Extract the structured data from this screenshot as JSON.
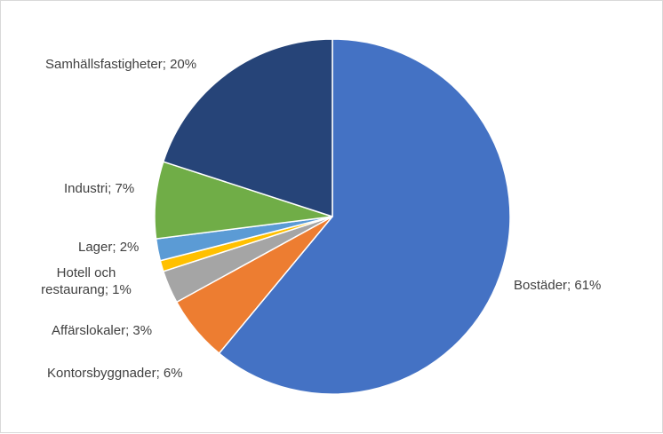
{
  "chart_data": {
    "type": "pie",
    "title": "",
    "slices": [
      {
        "label": "Bostäder; 61%",
        "category": "Bostäder",
        "value": 61,
        "color": "#4472c4"
      },
      {
        "label": "Kontorsbyggnader; 6%",
        "category": "Kontorsbyggnader",
        "value": 6,
        "color": "#ed7d31"
      },
      {
        "label": "Affärslokaler; 3%",
        "category": "Affärslokaler",
        "value": 3,
        "color": "#a5a5a5"
      },
      {
        "label": "Hotell och restaurang; 1%",
        "category": "Hotell och restaurang",
        "value": 1,
        "color": "#ffc000"
      },
      {
        "label": "Lager; 2%",
        "category": "Lager",
        "value": 2,
        "color": "#5b9bd5"
      },
      {
        "label": "Industri; 7%",
        "category": "Industri",
        "value": 7,
        "color": "#70ad47"
      },
      {
        "label": "Samhällsfastigheter; 20%",
        "category": "Samhällsfastigheter",
        "value": 20,
        "color": "#264478"
      }
    ],
    "start_angle": "12 o'clock",
    "direction": "clockwise",
    "legend": "none",
    "data_labels": "outside"
  }
}
